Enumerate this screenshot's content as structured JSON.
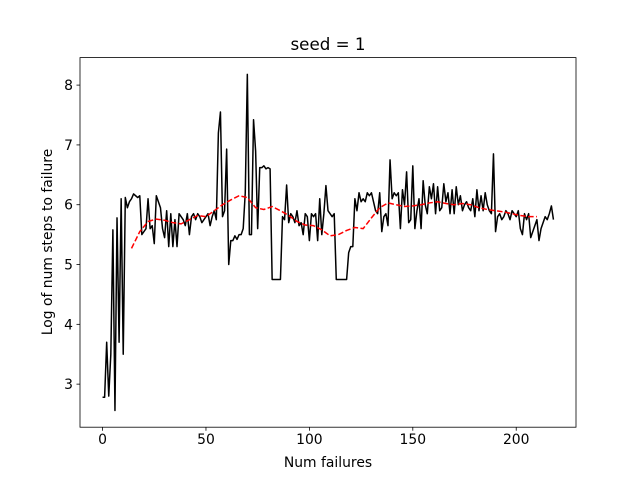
{
  "chart_data": {
    "type": "line",
    "title": "seed = 1",
    "xlabel": "Num failures",
    "ylabel": "Log of num steps to failure",
    "xlim": [
      -10.9,
      228.9
    ],
    "ylim": [
      2.28,
      8.46
    ],
    "xticks": [
      0,
      50,
      100,
      150,
      200
    ],
    "yticks": [
      3,
      4,
      5,
      6,
      7,
      8
    ],
    "series": [
      {
        "color": "#000000",
        "dash": false,
        "x": [
          0,
          1,
          2,
          3,
          4,
          5,
          6,
          7,
          8,
          9,
          10,
          11,
          12,
          13,
          14,
          15,
          16,
          17,
          18,
          19,
          20,
          21,
          22,
          23,
          24,
          25,
          26,
          27,
          28,
          29,
          30,
          31,
          32,
          33,
          34,
          35,
          36,
          37,
          38,
          39,
          40,
          41,
          42,
          43,
          44,
          45,
          46,
          47,
          48,
          49,
          50,
          51,
          52,
          53,
          54,
          55,
          56,
          57,
          58,
          59,
          60,
          61,
          62,
          63,
          64,
          65,
          66,
          67,
          68,
          69,
          70,
          71,
          72,
          73,
          74,
          75,
          76,
          77,
          78,
          79,
          80,
          81,
          82,
          83,
          84,
          85,
          86,
          87,
          88,
          89,
          90,
          91,
          92,
          93,
          94,
          95,
          96,
          97,
          98,
          99,
          100,
          101,
          102,
          103,
          104,
          105,
          106,
          107,
          108,
          109,
          110,
          111,
          112,
          113,
          114,
          115,
          116,
          117,
          118,
          119,
          120,
          121,
          122,
          123,
          124,
          125,
          126,
          127,
          128,
          129,
          130,
          131,
          132,
          133,
          134,
          135,
          136,
          137,
          138,
          139,
          140,
          141,
          142,
          143,
          144,
          145,
          146,
          147,
          148,
          149,
          150,
          151,
          152,
          153,
          154,
          155,
          156,
          157,
          158,
          159,
          160,
          161,
          162,
          163,
          164,
          165,
          166,
          167,
          168,
          169,
          170,
          171,
          172,
          173,
          174,
          175,
          176,
          177,
          178,
          179,
          180,
          181,
          182,
          183,
          184,
          185,
          186,
          187,
          188,
          189,
          190,
          191,
          192,
          193,
          194,
          195,
          196,
          197,
          198,
          199,
          200,
          201,
          202,
          203,
          204,
          205,
          206,
          207,
          208,
          209,
          210,
          211,
          212,
          213,
          214,
          215,
          216,
          217,
          218
        ],
        "values": [
          2.78,
          2.78,
          3.7,
          2.8,
          3.5,
          5.58,
          2.56,
          5.78,
          3.7,
          6.1,
          3.5,
          6.12,
          5.95,
          6.05,
          6.1,
          6.18,
          6.15,
          6.12,
          6.15,
          5.5,
          5.55,
          5.6,
          6.1,
          5.6,
          5.65,
          5.35,
          6.15,
          6.05,
          5.95,
          5.6,
          5.45,
          5.9,
          5.3,
          5.85,
          5.3,
          5.75,
          5.3,
          5.85,
          5.8,
          5.75,
          5.65,
          5.85,
          5.5,
          5.8,
          5.85,
          5.75,
          5.85,
          5.8,
          5.7,
          5.75,
          5.8,
          5.85,
          5.65,
          5.8,
          5.9,
          5.75,
          7.2,
          7.55,
          5.8,
          5.9,
          6.93,
          5.0,
          5.4,
          5.4,
          5.48,
          5.42,
          5.5,
          5.5,
          5.6,
          6.2,
          8.18,
          5.5,
          5.5,
          7.42,
          6.9,
          5.6,
          6.62,
          6.62,
          6.65,
          6.6,
          6.62,
          6.6,
          4.75,
          4.75,
          4.75,
          4.75,
          4.75,
          5.8,
          5.75,
          6.33,
          5.7,
          5.85,
          5.8,
          5.7,
          5.9,
          5.65,
          5.7,
          5.5,
          5.85,
          5.8,
          5.4,
          5.85,
          5.8,
          5.85,
          5.4,
          6.1,
          5.5,
          5.85,
          6.32,
          5.9,
          5.85,
          5.8,
          5.85,
          4.75,
          4.75,
          4.75,
          4.75,
          4.75,
          4.75,
          5.2,
          5.3,
          5.3,
          6.1,
          5.9,
          6.2,
          6.05,
          6.1,
          6.05,
          6.2,
          6.15,
          6.2,
          6.05,
          5.9,
          5.85,
          6.2,
          5.55,
          5.8,
          5.85,
          5.65,
          6.75,
          6.1,
          6.2,
          6.15,
          6.2,
          5.6,
          6.25,
          6.0,
          6.55,
          5.7,
          5.75,
          6.65,
          5.6,
          5.9,
          6.1,
          5.6,
          6.4,
          6.0,
          5.85,
          6.3,
          6.1,
          6.35,
          5.85,
          6.3,
          5.9,
          5.95,
          6.35,
          6.05,
          6.2,
          5.85,
          6.25,
          5.85,
          6.3,
          6.0,
          6.15,
          5.9,
          6.0,
          6.05,
          5.95,
          5.9,
          6.1,
          5.8,
          6.25,
          5.9,
          6.15,
          5.9,
          6.2,
          6.0,
          5.9,
          5.85,
          6.85,
          5.55,
          5.8,
          5.85,
          5.75,
          5.8,
          5.9,
          5.85,
          5.75,
          5.9,
          5.85,
          5.8,
          5.9,
          5.6,
          5.5,
          5.85,
          5.75,
          5.85,
          5.45,
          5.55,
          5.65,
          5.75,
          5.4,
          5.6,
          5.7,
          5.8,
          5.75,
          5.85,
          5.98,
          5.75
        ]
      },
      {
        "color": "#ff0000",
        "dash": true,
        "x": [
          14,
          18,
          22,
          26,
          30,
          34,
          38,
          42,
          46,
          50,
          54,
          58,
          62,
          66,
          70,
          74,
          78,
          82,
          86,
          90,
          94,
          98,
          102,
          106,
          110,
          114,
          118,
          122,
          126,
          130,
          134,
          138,
          142,
          146,
          150,
          154,
          158,
          162,
          166,
          170,
          174,
          178,
          182,
          186,
          190,
          194,
          198,
          202,
          206,
          210
        ],
        "values": [
          5.27,
          5.55,
          5.72,
          5.76,
          5.74,
          5.7,
          5.68,
          5.75,
          5.82,
          5.8,
          5.9,
          6.0,
          6.08,
          6.15,
          6.12,
          5.95,
          5.92,
          5.97,
          5.9,
          5.82,
          5.72,
          5.66,
          5.65,
          5.58,
          5.48,
          5.5,
          5.57,
          5.62,
          5.6,
          5.78,
          5.95,
          6.03,
          6.0,
          5.97,
          5.98,
          6.0,
          6.03,
          6.05,
          6.02,
          6.0,
          6.02,
          6.0,
          5.95,
          5.92,
          5.9,
          5.88,
          5.85,
          5.82,
          5.8,
          5.8
        ]
      }
    ]
  }
}
